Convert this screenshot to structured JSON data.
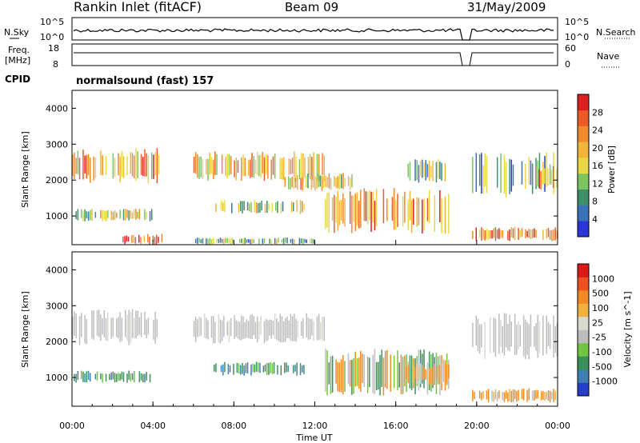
{
  "header": {
    "title": "Rankin Inlet (fitACF)",
    "beam": "Beam 09",
    "date": "31/May/2009"
  },
  "status_panels": {
    "nsky_label": "N.Sky",
    "nsearch_label": "N.Search",
    "nsky_ticks": [
      "10^5",
      "10^0"
    ],
    "nsearch_ticks": [
      "10^5",
      "10^0"
    ],
    "freq_label": "Freq.",
    "freq_unit": "[MHz]",
    "freq_ticks": [
      "18",
      "8"
    ],
    "nave_label": "Nave",
    "nave_ticks": [
      "60",
      "0"
    ],
    "cpid_label": "CPID",
    "cpid_text": "normalsound (fast) 157"
  },
  "chart_data": [
    {
      "type": "heatmap",
      "name": "power",
      "ylabel": "Slant Range [km]",
      "xlabel": "",
      "ylim": [
        200,
        4500
      ],
      "yticks": [
        "1000",
        "2000",
        "3000",
        "4000"
      ],
      "colorbar_label": "Power [dB]",
      "colorbar_ticks": [
        "28",
        "24",
        "20",
        "16",
        "12",
        "8",
        "4"
      ],
      "colors": [
        "#2b35d8",
        "#3a72b8",
        "#3e8f6a",
        "#7cc460",
        "#e8d846",
        "#f2b53a",
        "#ef8a2e",
        "#ec5a28",
        "#dd1f1f"
      ],
      "echo_regions": [
        {
          "t_start": 0.0,
          "t_end": 4.3,
          "r_low": 1900,
          "r_high": 2900,
          "level": 0.65
        },
        {
          "t_start": 0.0,
          "t_end": 4.0,
          "r_low": 850,
          "r_high": 1200,
          "level": 0.45
        },
        {
          "t_start": 6.0,
          "t_end": 12.5,
          "r_low": 1950,
          "r_high": 2800,
          "level": 0.6
        },
        {
          "t_start": 7.0,
          "t_end": 11.5,
          "r_low": 1050,
          "r_high": 1450,
          "level": 0.45
        },
        {
          "t_start": 10.5,
          "t_end": 14.0,
          "r_low": 1700,
          "r_high": 2200,
          "level": 0.55
        },
        {
          "t_start": 12.5,
          "t_end": 18.6,
          "r_low": 500,
          "r_high": 1800,
          "level": 0.7
        },
        {
          "t_start": 16.5,
          "t_end": 18.6,
          "r_low": 1900,
          "r_high": 2600,
          "level": 0.35
        },
        {
          "t_start": 19.6,
          "t_end": 24.0,
          "r_low": 300,
          "r_high": 700,
          "level": 0.75
        },
        {
          "t_start": 19.6,
          "t_end": 24.0,
          "r_low": 1500,
          "r_high": 2800,
          "level": 0.35
        },
        {
          "t_start": 22.8,
          "t_end": 24.0,
          "r_low": 1700,
          "r_high": 2400,
          "level": 0.7
        },
        {
          "t_start": 2.5,
          "t_end": 4.5,
          "r_low": 200,
          "r_high": 500,
          "level": 0.8
        },
        {
          "t_start": 6.0,
          "t_end": 12.0,
          "r_low": 200,
          "r_high": 400,
          "level": 0.35
        }
      ]
    },
    {
      "type": "heatmap",
      "name": "velocity",
      "ylabel": "Slant Range [km]",
      "xlabel": "Time UT",
      "ylim": [
        200,
        4500
      ],
      "yticks": [
        "1000",
        "2000",
        "3000",
        "4000"
      ],
      "xticks": [
        "00:00",
        "04:00",
        "08:00",
        "12:00",
        "16:00",
        "20:00",
        "00:00"
      ],
      "xlim": [
        0,
        24
      ],
      "colorbar_label": "Velocity [m s^-1]",
      "colorbar_ticks": [
        "1000",
        "500",
        "100",
        "25",
        "-25",
        "-100",
        "-500",
        "-1000"
      ],
      "colors": [
        "#2440c8",
        "#3f7fb4",
        "#3d8f5a",
        "#6fc442",
        "#bdbdbd",
        "#d9d9d0",
        "#f2b040",
        "#ef8a24",
        "#ee5020",
        "#dd1818"
      ],
      "echo_regions": [
        {
          "t_start": 0.0,
          "t_end": 4.3,
          "r_low": 1900,
          "r_high": 2900,
          "class": "gray"
        },
        {
          "t_start": 0.0,
          "t_end": 4.0,
          "r_low": 850,
          "r_high": 1200,
          "class": "green"
        },
        {
          "t_start": 6.0,
          "t_end": 12.5,
          "r_low": 1950,
          "r_high": 2800,
          "class": "gray"
        },
        {
          "t_start": 7.0,
          "t_end": 11.5,
          "r_low": 1050,
          "r_high": 1450,
          "class": "green"
        },
        {
          "t_start": 12.5,
          "t_end": 18.6,
          "r_low": 500,
          "r_high": 1800,
          "class": "mixed"
        },
        {
          "t_start": 16.5,
          "t_end": 18.6,
          "r_low": 800,
          "r_high": 1400,
          "class": "orange"
        },
        {
          "t_start": 19.6,
          "t_end": 24.0,
          "r_low": 300,
          "r_high": 700,
          "class": "orange"
        },
        {
          "t_start": 19.6,
          "t_end": 24.0,
          "r_low": 1500,
          "r_high": 2800,
          "class": "gray"
        }
      ]
    }
  ]
}
